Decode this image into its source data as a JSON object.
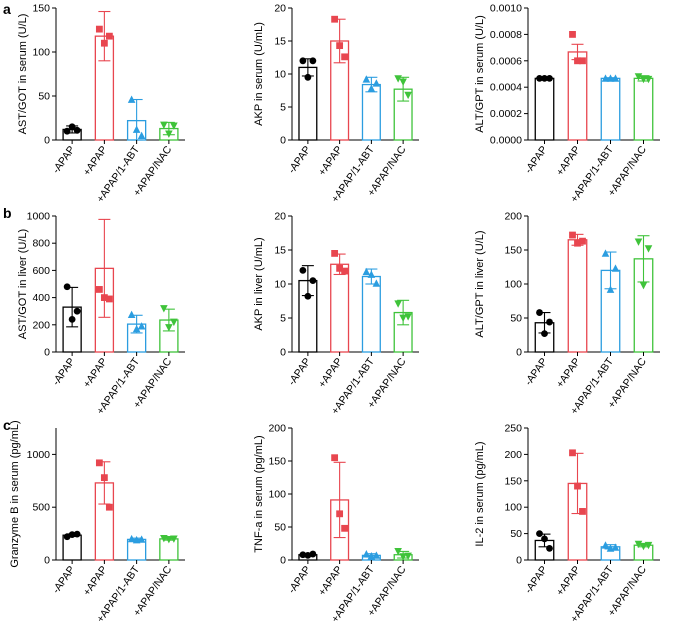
{
  "colors": {
    "black": "#000000",
    "red": "#e8464f",
    "blue": "#2b9de0",
    "green": "#3fc33a"
  },
  "panel_letters": [
    {
      "letter": "a"
    },
    {
      "letter": "b"
    },
    {
      "letter": "c"
    }
  ],
  "chart_data": [
    {
      "panel": "a",
      "type": "bar",
      "ylabel": "AST/GOT in serum (U/L)",
      "ylim": [
        0,
        150
      ],
      "yticks": [
        "0",
        "50",
        "100",
        "150"
      ],
      "categories": [
        "-APAP",
        "+APAP",
        "+APAP/1-ABT",
        "+APAP/NAC"
      ],
      "series_colors": [
        "#000000",
        "#e8464f",
        "#2b9de0",
        "#3fc33a"
      ],
      "markers": [
        "circle",
        "square",
        "triangle-up",
        "triangle-down"
      ],
      "means": [
        12,
        118,
        22,
        13
      ],
      "errors": [
        4,
        28,
        24,
        7
      ],
      "points": [
        [
          10,
          15,
          11
        ],
        [
          126,
          110,
          118
        ],
        [
          46,
          12,
          5
        ],
        [
          17,
          7,
          16
        ]
      ]
    },
    {
      "panel": "a",
      "type": "bar",
      "ylabel": "AKP in serum (U/mL)",
      "ylim": [
        0,
        20
      ],
      "yticks": [
        "0",
        "5",
        "10",
        "15",
        "20"
      ],
      "categories": [
        "-APAP",
        "+APAP",
        "+APAP/1-ABT",
        "+APAP/NAC"
      ],
      "series_colors": [
        "#000000",
        "#e8464f",
        "#2b9de0",
        "#3fc33a"
      ],
      "markers": [
        "circle",
        "square",
        "triangle-up",
        "triangle-down"
      ],
      "means": [
        11,
        15,
        8.4,
        7.7
      ],
      "errors": [
        1.3,
        3.3,
        1.1,
        1.8
      ],
      "points": [
        [
          12,
          9.5,
          12
        ],
        [
          18.3,
          14.3,
          12.6
        ],
        [
          9.2,
          7.8,
          8.6
        ],
        [
          9.3,
          8.8,
          6.8
        ]
      ]
    },
    {
      "panel": "a",
      "type": "bar",
      "ylabel": "ALT/GPT in serum (U/L)",
      "ylim": [
        0,
        0.001
      ],
      "yticks": [
        "0.0000",
        "0.0002",
        "0.0004",
        "0.0006",
        "0.0008",
        "0.0010"
      ],
      "categories": [
        "-APAP",
        "+APAP",
        "+APAP/1-ABT",
        "+APAP/NAC"
      ],
      "series_colors": [
        "#000000",
        "#e8464f",
        "#2b9de0",
        "#3fc33a"
      ],
      "markers": [
        "circle",
        "square",
        "triangle-up",
        "triangle-down"
      ],
      "means": [
        0.000467,
        0.000667,
        0.000467,
        0.000467
      ],
      "errors": [
        5e-06,
        5.8e-05,
        5e-06,
        2e-05
      ],
      "points": [
        [
          0.000467,
          0.000467,
          0.000467
        ],
        [
          0.0008,
          0.0006,
          0.0006
        ],
        [
          0.000467,
          0.000467,
          0.000467
        ],
        [
          0.00048,
          0.00046,
          0.00046
        ]
      ]
    },
    {
      "panel": "b",
      "type": "bar",
      "ylabel": "AST/GOT in liver (U/L)",
      "ylim": [
        0,
        1000
      ],
      "yticks": [
        "0",
        "200",
        "400",
        "600",
        "800",
        "1000"
      ],
      "categories": [
        "-APAP",
        "+APAP",
        "+APAP/1-ABT",
        "+APAP/NAC"
      ],
      "series_colors": [
        "#000000",
        "#e8464f",
        "#2b9de0",
        "#3fc33a"
      ],
      "markers": [
        "circle",
        "square",
        "triangle-up",
        "triangle-down"
      ],
      "means": [
        330,
        615,
        205,
        235
      ],
      "errors": [
        145,
        360,
        65,
        80
      ],
      "points": [
        [
          480,
          240,
          300
        ],
        [
          460,
          400,
          390
        ],
        [
          275,
          170,
          190
        ],
        [
          320,
          180,
          220
        ]
      ]
    },
    {
      "panel": "b",
      "type": "bar",
      "ylabel": "AKP in liver (U/mL)",
      "ylim": [
        0,
        20
      ],
      "yticks": [
        "0",
        "5",
        "10",
        "15",
        "20"
      ],
      "categories": [
        "-APAP",
        "+APAP",
        "+APAP/1-ABT",
        "+APAP/NAC"
      ],
      "series_colors": [
        "#000000",
        "#e8464f",
        "#2b9de0",
        "#3fc33a"
      ],
      "markers": [
        "circle",
        "square",
        "triangle-up",
        "triangle-down"
      ],
      "means": [
        10.5,
        12.9,
        11.1,
        5.8
      ],
      "errors": [
        2.2,
        1.5,
        1.1,
        1.8
      ],
      "points": [
        [
          12,
          8.2,
          10.5
        ],
        [
          14.5,
          12.3,
          11.9
        ],
        [
          11.8,
          11.4,
          10.1
        ],
        [
          7.1,
          5.0,
          5.2
        ]
      ]
    },
    {
      "panel": "b",
      "type": "bar",
      "ylabel": "ALT/GPT in liver (U/L)",
      "ylim": [
        0,
        200
      ],
      "yticks": [
        "0",
        "50",
        "100",
        "150",
        "200"
      ],
      "categories": [
        "-APAP",
        "+APAP",
        "+APAP/1-ABT",
        "+APAP/NAC"
      ],
      "series_colors": [
        "#000000",
        "#e8464f",
        "#2b9de0",
        "#3fc33a"
      ],
      "markers": [
        "circle",
        "square",
        "triangle-up",
        "triangle-down"
      ],
      "means": [
        43,
        165,
        120,
        137
      ],
      "errors": [
        15,
        8,
        27,
        34
      ],
      "points": [
        [
          58,
          27,
          44
        ],
        [
          172,
          160,
          163
        ],
        [
          145,
          92,
          123
        ],
        [
          162,
          98,
          152
        ]
      ]
    },
    {
      "panel": "c",
      "type": "bar",
      "ylabel": "Granzyme B in serum (pg/mL)",
      "ylim": [
        0,
        1250
      ],
      "yticks": [
        "0",
        "500",
        "1000"
      ],
      "categories": [
        "-APAP",
        "+APAP",
        "+APAP/1-ABT",
        "+APAP/NAC"
      ],
      "series_colors": [
        "#000000",
        "#e8464f",
        "#2b9de0",
        "#3fc33a"
      ],
      "markers": [
        "circle",
        "square",
        "triangle-up",
        "triangle-down"
      ],
      "means": [
        235,
        730,
        195,
        200
      ],
      "errors": [
        12,
        200,
        12,
        12
      ],
      "points": [
        [
          220,
          240,
          245
        ],
        [
          920,
          780,
          500
        ],
        [
          200,
          190,
          195
        ],
        [
          205,
          195,
          200
        ]
      ]
    },
    {
      "panel": "c",
      "type": "bar",
      "ylabel": "TNF-a in serum (pg/mL)",
      "ylim": [
        0,
        200
      ],
      "yticks": [
        "0",
        "50",
        "100",
        "150",
        "200"
      ],
      "categories": [
        "-APAP",
        "+APAP",
        "+APAP/1-ABT",
        "+APAP/NAC"
      ],
      "series_colors": [
        "#000000",
        "#e8464f",
        "#2b9de0",
        "#3fc33a"
      ],
      "markers": [
        "circle",
        "square",
        "triangle-up",
        "triangle-down"
      ],
      "means": [
        8,
        91,
        7,
        8
      ],
      "errors": [
        1.5,
        57,
        2.5,
        5
      ],
      "points": [
        [
          8,
          7,
          9
        ],
        [
          155,
          70,
          48
        ],
        [
          9,
          6,
          7
        ],
        [
          13,
          5,
          6
        ]
      ]
    },
    {
      "panel": "c",
      "type": "bar",
      "ylabel": "IL-2 in serum (pg/mL)",
      "ylim": [
        0,
        250
      ],
      "yticks": [
        "0",
        "50",
        "100",
        "150",
        "200",
        "250"
      ],
      "categories": [
        "-APAP",
        "+APAP",
        "+APAP/1-ABT",
        "+APAP/NAC"
      ],
      "series_colors": [
        "#000000",
        "#e8464f",
        "#2b9de0",
        "#3fc33a"
      ],
      "markers": [
        "circle",
        "square",
        "triangle-up",
        "triangle-down"
      ],
      "means": [
        37,
        145,
        25,
        28
      ],
      "errors": [
        12,
        57,
        4,
        3
      ],
      "points": [
        [
          50,
          40,
          22
        ],
        [
          203,
          140,
          92
        ],
        [
          28,
          22,
          24
        ],
        [
          30,
          26,
          28
        ]
      ]
    }
  ]
}
